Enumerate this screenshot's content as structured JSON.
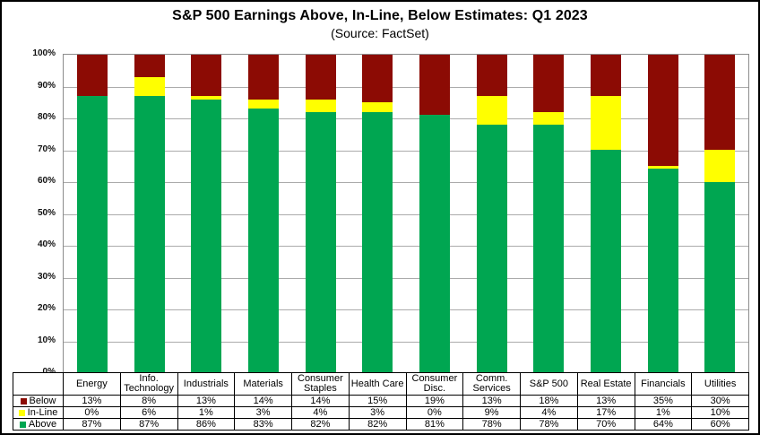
{
  "title": "S&P 500 Earnings Above, In-Line, Below Estimates: Q1 2023",
  "subtitle": "(Source: FactSet)",
  "colors": {
    "above": "#00A651",
    "in_line": "#FFFF00",
    "below": "#8C0B04",
    "gridline": "#ABABAB",
    "plot_border": "#8C8C8C",
    "figure_border": "#000000",
    "text": "#000000"
  },
  "chart_data": {
    "type": "bar",
    "stacked": true,
    "percent_stacked": true,
    "title": "S&P 500 Earnings Above, In-Line, Below Estimates: Q1 2023",
    "subtitle": "(Source: FactSet)",
    "categories": [
      "Energy",
      "Info. Technology",
      "Industrials",
      "Materials",
      "Consumer Staples",
      "Health Care",
      "Consumer Disc.",
      "Comm. Services",
      "S&P 500",
      "Real Estate",
      "Financials",
      "Utilities"
    ],
    "series": [
      {
        "name": "Below",
        "color": "#8C0B04",
        "values": [
          13,
          8,
          13,
          14,
          14,
          15,
          19,
          13,
          18,
          13,
          35,
          30
        ]
      },
      {
        "name": "In-Line",
        "color": "#FFFF00",
        "values": [
          0,
          6,
          1,
          3,
          4,
          3,
          0,
          9,
          4,
          17,
          1,
          10
        ]
      },
      {
        "name": "Above",
        "color": "#00A651",
        "values": [
          87,
          87,
          86,
          83,
          82,
          82,
          81,
          78,
          78,
          70,
          64,
          60
        ]
      }
    ],
    "value_suffix": "%",
    "xlabel": "",
    "ylabel": "",
    "ylim": [
      0,
      100
    ],
    "ytick_step": 10,
    "ytick_suffix": "%",
    "grid": true,
    "legend_position": "table-left",
    "data_table_shown": true
  }
}
